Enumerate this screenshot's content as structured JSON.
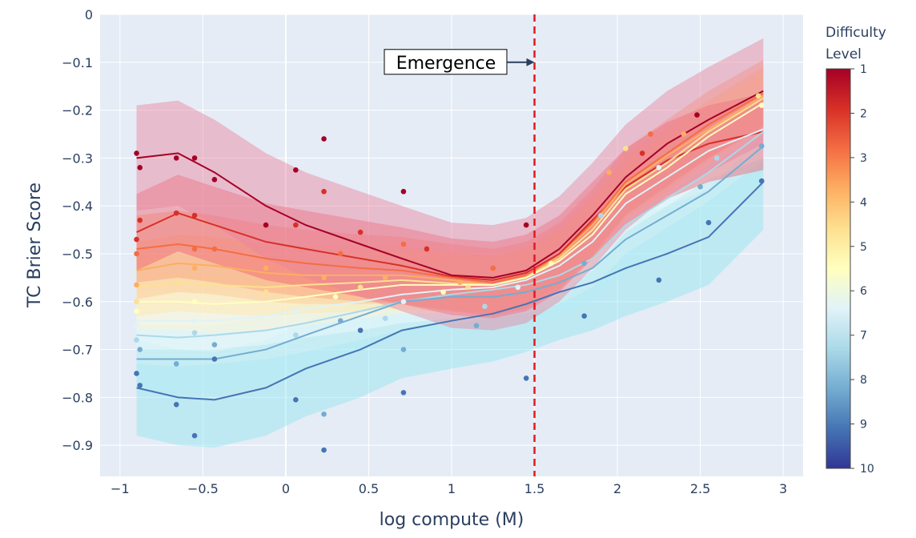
{
  "chart_data": {
    "type": "line",
    "title": "",
    "xlabel": "log compute (M)",
    "ylabel": "TC Brier Score",
    "xlim": [
      -1.12,
      3.12
    ],
    "ylim": [
      -0.965,
      0.0
    ],
    "x_ticks": [
      -1,
      -0.5,
      0,
      0.5,
      1,
      1.5,
      2,
      2.5,
      3
    ],
    "x_tick_labels": [
      "−1",
      "−0.5",
      "0",
      "0.5",
      "1",
      "1.5",
      "2",
      "2.5",
      "3"
    ],
    "y_ticks": [
      0,
      -0.1,
      -0.2,
      -0.3,
      -0.4,
      -0.5,
      -0.6,
      -0.7,
      -0.8,
      -0.9
    ],
    "y_tick_labels": [
      "0",
      "−0.1",
      "−0.2",
      "−0.3",
      "−0.4",
      "−0.5",
      "−0.6",
      "−0.7",
      "−0.8",
      "−0.9"
    ],
    "grid": true,
    "background": "#e5ecf6",
    "annotation": {
      "text": "Emergence",
      "x": 1.5,
      "y": -0.1,
      "vline_x": 1.5,
      "vline_color": "#e41a1c"
    },
    "colorbar": {
      "title": [
        "Difficulty",
        "Level"
      ],
      "ticks": [
        "1",
        "2",
        "3",
        "4",
        "5",
        "6",
        "7",
        "8",
        "9",
        "10"
      ],
      "colors": [
        "#a50026",
        "#d73027",
        "#f46d43",
        "#fdae61",
        "#fee090",
        "#ffffbf",
        "#e0f3f8",
        "#abd9e9",
        "#74add1",
        "#4575b4",
        "#313695"
      ]
    },
    "x": [
      -0.9,
      -0.65,
      -0.43,
      -0.12,
      0.12,
      0.45,
      0.7,
      1.0,
      1.25,
      1.45,
      1.65,
      1.85,
      2.05,
      2.3,
      2.55,
      2.88
    ],
    "series": [
      {
        "name": "Level 1",
        "color": "#a50026",
        "band": 0.11,
        "values": [
          -0.3,
          -0.29,
          -0.33,
          -0.4,
          -0.44,
          -0.48,
          -0.51,
          -0.545,
          -0.55,
          -0.535,
          -0.49,
          -0.42,
          -0.34,
          -0.27,
          -0.22,
          -0.16
        ]
      },
      {
        "name": "Level 2",
        "color": "#d73027",
        "band": 0.08,
        "values": [
          -0.455,
          -0.415,
          -0.44,
          -0.475,
          -0.49,
          -0.51,
          -0.525,
          -0.548,
          -0.555,
          -0.54,
          -0.5,
          -0.43,
          -0.36,
          -0.305,
          -0.27,
          -0.245
        ]
      },
      {
        "name": "Level 3",
        "color": "#f46d43",
        "band": 0.07,
        "values": [
          -0.49,
          -0.48,
          -0.49,
          -0.51,
          -0.52,
          -0.53,
          -0.535,
          -0.55,
          -0.56,
          -0.545,
          -0.505,
          -0.435,
          -0.35,
          -0.29,
          -0.23,
          -0.165
        ]
      },
      {
        "name": "Level 4",
        "color": "#fdae61",
        "band": 0.06,
        "values": [
          -0.535,
          -0.52,
          -0.525,
          -0.54,
          -0.545,
          -0.545,
          -0.545,
          -0.555,
          -0.565,
          -0.548,
          -0.505,
          -0.44,
          -0.355,
          -0.295,
          -0.24,
          -0.17
        ]
      },
      {
        "name": "Level 5",
        "color": "#fee090",
        "band": 0.06,
        "values": [
          -0.57,
          -0.56,
          -0.565,
          -0.57,
          -0.565,
          -0.56,
          -0.555,
          -0.562,
          -0.565,
          -0.55,
          -0.51,
          -0.45,
          -0.365,
          -0.31,
          -0.245,
          -0.175
        ]
      },
      {
        "name": "Level 6",
        "color": "#ffffbf",
        "band": 0.06,
        "values": [
          -0.6,
          -0.6,
          -0.605,
          -0.6,
          -0.59,
          -0.575,
          -0.565,
          -0.565,
          -0.565,
          -0.55,
          -0.515,
          -0.46,
          -0.375,
          -0.32,
          -0.255,
          -0.185
        ]
      },
      {
        "name": "Level 7",
        "color": "#e0f3f8",
        "band": 0.06,
        "values": [
          -0.64,
          -0.64,
          -0.64,
          -0.63,
          -0.615,
          -0.6,
          -0.585,
          -0.575,
          -0.57,
          -0.555,
          -0.525,
          -0.475,
          -0.395,
          -0.34,
          -0.285,
          -0.24
        ]
      },
      {
        "name": "Level 8",
        "color": "#abd9e9",
        "band": 0.06,
        "values": [
          -0.67,
          -0.675,
          -0.67,
          -0.66,
          -0.645,
          -0.62,
          -0.6,
          -0.585,
          -0.575,
          -0.565,
          -0.545,
          -0.51,
          -0.44,
          -0.385,
          -0.33,
          -0.245
        ]
      },
      {
        "name": "Level 9",
        "color": "#74add1",
        "band": 0.07,
        "values": [
          -0.72,
          -0.72,
          -0.72,
          -0.7,
          -0.67,
          -0.63,
          -0.6,
          -0.59,
          -0.59,
          -0.58,
          -0.56,
          -0.53,
          -0.47,
          -0.42,
          -0.37,
          -0.275
        ]
      },
      {
        "name": "Level 10",
        "color": "#4575b4",
        "band": 0.1,
        "values": [
          -0.78,
          -0.8,
          -0.805,
          -0.78,
          -0.74,
          -0.7,
          -0.66,
          -0.64,
          -0.625,
          -0.605,
          -0.58,
          -0.56,
          -0.53,
          -0.5,
          -0.465,
          -0.35
        ]
      }
    ],
    "markers": [
      [
        -0.9,
        -0.29,
        1
      ],
      [
        -0.88,
        -0.32,
        1
      ],
      [
        -0.66,
        -0.3,
        1
      ],
      [
        -0.55,
        -0.3,
        1
      ],
      [
        -0.43,
        -0.345,
        1
      ],
      [
        -0.12,
        -0.44,
        1
      ],
      [
        0.06,
        -0.325,
        1
      ],
      [
        0.23,
        -0.26,
        1
      ],
      [
        0.71,
        -0.37,
        1
      ],
      [
        1.45,
        -0.44,
        1
      ],
      [
        2.48,
        -0.21,
        1
      ],
      [
        -0.9,
        -0.47,
        2
      ],
      [
        -0.88,
        -0.43,
        2
      ],
      [
        -0.66,
        -0.415,
        2
      ],
      [
        -0.55,
        -0.42,
        2
      ],
      [
        0.23,
        -0.37,
        2
      ],
      [
        0.06,
        -0.44,
        2
      ],
      [
        0.45,
        -0.455,
        2
      ],
      [
        0.85,
        -0.49,
        2
      ],
      [
        2.15,
        -0.29,
        2
      ],
      [
        -0.9,
        -0.5,
        3
      ],
      [
        -0.55,
        -0.49,
        3
      ],
      [
        -0.43,
        -0.49,
        3
      ],
      [
        0.33,
        -0.5,
        3
      ],
      [
        0.71,
        -0.48,
        3
      ],
      [
        1.25,
        -0.53,
        3
      ],
      [
        2.2,
        -0.25,
        3
      ],
      [
        -0.9,
        -0.565,
        4
      ],
      [
        -0.55,
        -0.53,
        4
      ],
      [
        -0.12,
        -0.53,
        4
      ],
      [
        0.23,
        -0.55,
        4
      ],
      [
        0.6,
        -0.55,
        4
      ],
      [
        1.05,
        -0.56,
        4
      ],
      [
        1.95,
        -0.33,
        4
      ],
      [
        2.4,
        -0.25,
        4
      ],
      [
        -0.9,
        -0.6,
        5
      ],
      [
        -0.66,
        -0.56,
        5
      ],
      [
        -0.12,
        -0.58,
        5
      ],
      [
        0.45,
        -0.57,
        5
      ],
      [
        1.1,
        -0.57,
        5
      ],
      [
        2.05,
        -0.28,
        5
      ],
      [
        2.85,
        -0.17,
        5
      ],
      [
        -0.9,
        -0.62,
        6
      ],
      [
        -0.55,
        -0.6,
        6
      ],
      [
        0.3,
        -0.59,
        6
      ],
      [
        0.95,
        -0.58,
        6
      ],
      [
        1.6,
        -0.52,
        6
      ],
      [
        2.87,
        -0.19,
        6
      ],
      [
        -0.9,
        -0.65,
        7
      ],
      [
        -0.55,
        -0.64,
        7
      ],
      [
        0.06,
        -0.62,
        7
      ],
      [
        0.71,
        -0.6,
        7
      ],
      [
        1.4,
        -0.57,
        7
      ],
      [
        2.25,
        -0.32,
        7
      ],
      [
        -0.9,
        -0.68,
        8
      ],
      [
        -0.55,
        -0.665,
        8
      ],
      [
        0.06,
        -0.67,
        8
      ],
      [
        0.6,
        -0.635,
        8
      ],
      [
        1.2,
        -0.61,
        8
      ],
      [
        1.9,
        -0.42,
        8
      ],
      [
        2.6,
        -0.3,
        8
      ],
      [
        -0.88,
        -0.7,
        9
      ],
      [
        -0.66,
        -0.73,
        9
      ],
      [
        -0.43,
        -0.69,
        9
      ],
      [
        0.23,
        -0.835,
        9
      ],
      [
        0.33,
        -0.64,
        9
      ],
      [
        0.71,
        -0.7,
        9
      ],
      [
        1.15,
        -0.65,
        9
      ],
      [
        1.8,
        -0.52,
        9
      ],
      [
        2.5,
        -0.36,
        9
      ],
      [
        2.87,
        -0.275,
        9
      ],
      [
        -0.9,
        -0.75,
        10
      ],
      [
        -0.88,
        -0.775,
        10
      ],
      [
        -0.66,
        -0.815,
        10
      ],
      [
        -0.55,
        -0.88,
        10
      ],
      [
        -0.43,
        -0.72,
        10
      ],
      [
        0.06,
        -0.805,
        10
      ],
      [
        0.23,
        -0.91,
        10
      ],
      [
        0.45,
        -0.66,
        10
      ],
      [
        0.71,
        -0.79,
        10
      ],
      [
        1.45,
        -0.76,
        10
      ],
      [
        1.8,
        -0.63,
        10
      ],
      [
        2.25,
        -0.555,
        10
      ],
      [
        2.55,
        -0.435,
        10
      ],
      [
        2.87,
        -0.348,
        10
      ]
    ]
  }
}
